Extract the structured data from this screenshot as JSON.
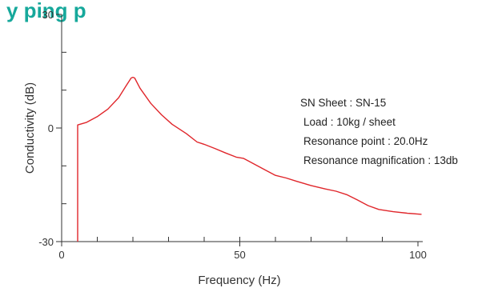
{
  "header": {
    "title_fragment": "y ping             p"
  },
  "chart_data": {
    "type": "line",
    "xlabel": "Frequency (Hz)",
    "ylabel": "Conductivity (dB)",
    "xlim": [
      0,
      100
    ],
    "ylim": [
      -30,
      30
    ],
    "x_ticks": [
      0,
      50,
      100
    ],
    "y_ticks": [
      -30,
      0,
      30
    ],
    "x_minor_ticks": [
      10,
      20,
      30,
      40,
      50,
      60,
      70,
      80,
      90
    ],
    "y_minor_ticks": [
      -20,
      -10,
      10,
      20
    ],
    "grid": false,
    "series": [
      {
        "color": "#e0262b",
        "points": [
          [
            4.5,
            -30
          ],
          [
            4.5,
            0.8
          ],
          [
            7,
            1.5
          ],
          [
            10,
            3
          ],
          [
            13,
            5
          ],
          [
            16,
            8
          ],
          [
            18,
            11
          ],
          [
            19.5,
            13.2
          ],
          [
            20,
            13.4
          ],
          [
            20.5,
            13.2
          ],
          [
            22,
            10.5
          ],
          [
            25,
            6.5
          ],
          [
            28,
            3.5
          ],
          [
            31,
            1
          ],
          [
            35,
            -1.5
          ],
          [
            38,
            -3.7
          ],
          [
            40,
            -4.3
          ],
          [
            43,
            -5.4
          ],
          [
            46,
            -6.6
          ],
          [
            49,
            -7.7
          ],
          [
            51,
            -8
          ],
          [
            54,
            -9.5
          ],
          [
            57,
            -11
          ],
          [
            60,
            -12.5
          ],
          [
            63,
            -13.2
          ],
          [
            66,
            -14.1
          ],
          [
            70,
            -15.2
          ],
          [
            74,
            -16.1
          ],
          [
            77,
            -16.7
          ],
          [
            80,
            -17.6
          ],
          [
            83,
            -19
          ],
          [
            86,
            -20.5
          ],
          [
            89,
            -21.5
          ],
          [
            93,
            -22.1
          ],
          [
            97,
            -22.5
          ],
          [
            101,
            -22.8
          ]
        ]
      }
    ],
    "annotations": [
      "SN Sheet : SN-15",
      "Load : 10kg / sheet",
      "Resonance point : 20.0Hz",
      "Resonance magnification : 13db"
    ],
    "title_color": "#16a89b",
    "axis_color": "#333333"
  }
}
